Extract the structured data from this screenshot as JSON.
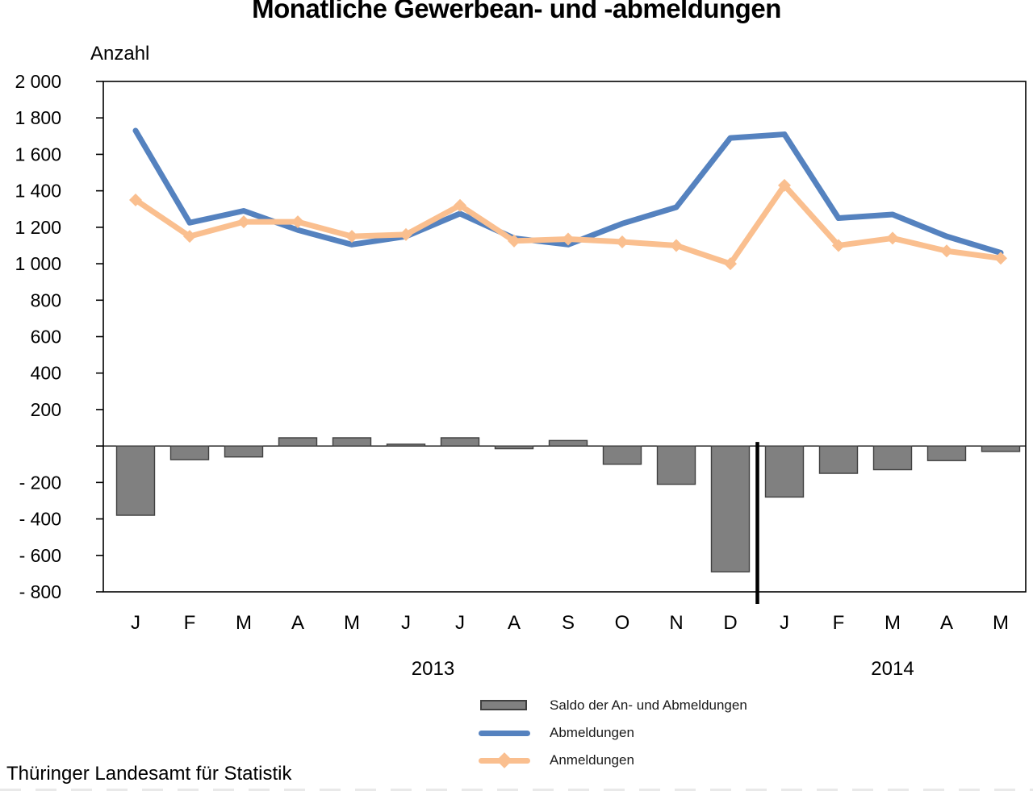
{
  "footer": "Thüringer Landesamt für Statistik",
  "chart_data": {
    "type": "combo",
    "title": "Monatliche Gewerbean- und -abmeldungen",
    "ylabel": "Anzahl",
    "categories": [
      "J",
      "F",
      "M",
      "A",
      "M",
      "J",
      "J",
      "A",
      "S",
      "O",
      "N",
      "D",
      "J",
      "F",
      "M",
      "A",
      "M"
    ],
    "years": [
      {
        "label": "2013",
        "from": 0,
        "to": 11
      },
      {
        "label": "2014",
        "from": 12,
        "to": 16
      }
    ],
    "ylim": [
      -800,
      2000
    ],
    "grid": false,
    "legend_position": "bottom",
    "year_separator_after_index": 11,
    "yticks": [
      {
        "value": 2000,
        "label": "2 000"
      },
      {
        "value": 1800,
        "label": "1 800"
      },
      {
        "value": 1600,
        "label": "1 600"
      },
      {
        "value": 1400,
        "label": "1 400"
      },
      {
        "value": 1200,
        "label": "1 200"
      },
      {
        "value": 1000,
        "label": "1 000"
      },
      {
        "value": 800,
        "label": "800"
      },
      {
        "value": 600,
        "label": "600"
      },
      {
        "value": 400,
        "label": "400"
      },
      {
        "value": 200,
        "label": "200"
      },
      {
        "value": 0,
        "label": ""
      },
      {
        "value": -200,
        "label": "- 200"
      },
      {
        "value": -400,
        "label": "- 400"
      },
      {
        "value": -600,
        "label": "- 600"
      },
      {
        "value": -800,
        "label": "- 800"
      }
    ],
    "series": [
      {
        "name": "Saldo der An- und Abmeldungen",
        "type": "bar",
        "color": "#808080",
        "border": "#404040",
        "values": [
          -380,
          -75,
          -60,
          45,
          45,
          10,
          45,
          -15,
          30,
          -100,
          -210,
          -690,
          -280,
          -150,
          -130,
          -80,
          -30
        ]
      },
      {
        "name": "Abmeldungen",
        "type": "line",
        "color": "#5582BF",
        "values": [
          1730,
          1225,
          1290,
          1185,
          1105,
          1150,
          1275,
          1140,
          1105,
          1220,
          1310,
          1690,
          1710,
          1250,
          1270,
          1150,
          1060
        ]
      },
      {
        "name": "Anmeldungen",
        "type": "line",
        "marker": "diamond",
        "color": "#FABF8F",
        "values": [
          1350,
          1150,
          1230,
          1230,
          1150,
          1160,
          1320,
          1125,
          1135,
          1120,
          1100,
          1000,
          1430,
          1100,
          1140,
          1070,
          1030
        ]
      }
    ],
    "colors": {
      "axis": "#000000",
      "text": "#000000"
    }
  }
}
